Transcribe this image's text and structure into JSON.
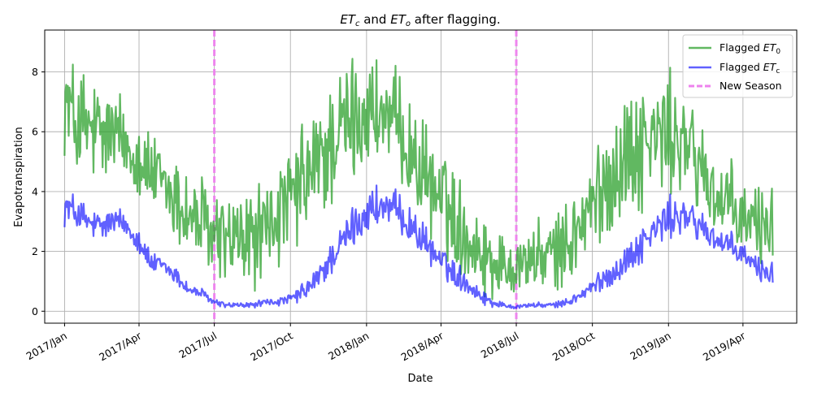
{
  "chart_data": {
    "type": "line",
    "title_parts": [
      "ET",
      "c",
      " and ",
      "ET",
      "o",
      " after flagging."
    ],
    "xlabel": "Date",
    "ylabel": "Evapotranspiration",
    "x_ticks": [
      {
        "date": "2017-01-01",
        "label": "2017/Jan"
      },
      {
        "date": "2017-04-01",
        "label": "2017/Apr"
      },
      {
        "date": "2017-07-01",
        "label": "2017/Jul"
      },
      {
        "date": "2017-10-01",
        "label": "2017/Oct"
      },
      {
        "date": "2018-01-01",
        "label": "2018/Jan"
      },
      {
        "date": "2018-04-01",
        "label": "2018/Apr"
      },
      {
        "date": "2018-07-01",
        "label": "2018/Jul"
      },
      {
        "date": "2018-10-01",
        "label": "2018/Oct"
      },
      {
        "date": "2019-01-01",
        "label": "2019/Jan"
      },
      {
        "date": "2019-04-01",
        "label": "2019/Apr"
      }
    ],
    "y_ticks": [
      0,
      2,
      4,
      6,
      8
    ],
    "xlim": [
      "2016-12-08",
      "2019-06-05"
    ],
    "ylim": [
      -0.4,
      9.4
    ],
    "grid": true,
    "legend_position": "top-right",
    "series": [
      {
        "name": "Flagged ET0",
        "legend_parts": [
          "Flagged ",
          "ET",
          "0"
        ],
        "color": "#2ca02c",
        "opacity": 0.75,
        "x": [
          "2017-01-01",
          "2017-01-15",
          "2017-02-01",
          "2017-02-15",
          "2017-03-01",
          "2017-03-15",
          "2017-04-01",
          "2017-04-15",
          "2017-05-01",
          "2017-05-15",
          "2017-06-01",
          "2017-06-15",
          "2017-07-01",
          "2017-07-15",
          "2017-08-01",
          "2017-08-15",
          "2017-09-01",
          "2017-09-15",
          "2017-10-01",
          "2017-10-15",
          "2017-11-01",
          "2017-11-15",
          "2017-12-01",
          "2017-12-15",
          "2018-01-01",
          "2018-01-15",
          "2018-02-01",
          "2018-02-15",
          "2018-03-01",
          "2018-03-15",
          "2018-04-01",
          "2018-04-15",
          "2018-05-01",
          "2018-05-15",
          "2018-06-01",
          "2018-06-15",
          "2018-07-01",
          "2018-07-15",
          "2018-08-01",
          "2018-08-15",
          "2018-09-01",
          "2018-09-15",
          "2018-10-01",
          "2018-10-15",
          "2018-11-01",
          "2018-11-15",
          "2018-12-01",
          "2018-12-15",
          "2019-01-01",
          "2019-01-15",
          "2019-02-01",
          "2019-02-15",
          "2019-03-01",
          "2019-03-15",
          "2019-04-01",
          "2019-04-15",
          "2019-05-01"
        ],
        "values": [
          7.1,
          6.3,
          6.0,
          5.8,
          5.9,
          5.6,
          5.2,
          4.6,
          4.2,
          3.7,
          3.2,
          2.9,
          2.5,
          2.4,
          2.3,
          2.4,
          2.7,
          3.1,
          3.6,
          4.2,
          4.8,
          5.4,
          6.0,
          6.4,
          6.7,
          6.6,
          6.3,
          5.8,
          5.0,
          4.4,
          3.8,
          3.2,
          2.6,
          2.1,
          1.7,
          1.5,
          1.6,
          1.7,
          1.8,
          1.9,
          2.2,
          2.8,
          3.5,
          4.2,
          4.9,
          5.3,
          5.6,
          5.8,
          5.9,
          5.7,
          5.2,
          4.5,
          3.8,
          3.4,
          3.0,
          2.9,
          3.0
        ],
        "amplitude": [
          1.1,
          1.3,
          1.3,
          1.2,
          1.1,
          1.0,
          0.9,
          0.9,
          0.9,
          1.0,
          1.1,
          1.1,
          1.0,
          1.0,
          1.1,
          1.1,
          1.1,
          1.1,
          1.2,
          1.3,
          1.4,
          1.4,
          1.4,
          1.4,
          1.3,
          1.2,
          1.2,
          1.1,
          1.1,
          1.1,
          1.1,
          1.1,
          1.0,
          0.9,
          0.8,
          0.7,
          0.7,
          0.7,
          0.8,
          0.8,
          0.9,
          1.0,
          1.1,
          1.2,
          1.4,
          1.4,
          1.4,
          1.4,
          1.3,
          1.2,
          1.2,
          1.1,
          1.1,
          1.0,
          1.0,
          1.0,
          1.0
        ]
      },
      {
        "name": "Flagged ETc",
        "legend_parts": [
          "Flagged ",
          "ET",
          "c"
        ],
        "color": "#0000ff",
        "opacity": 0.62,
        "x": [
          "2017-01-01",
          "2017-01-15",
          "2017-02-01",
          "2017-02-15",
          "2017-03-01",
          "2017-03-15",
          "2017-04-01",
          "2017-04-15",
          "2017-05-01",
          "2017-05-15",
          "2017-06-01",
          "2017-06-15",
          "2017-07-01",
          "2017-07-15",
          "2017-08-01",
          "2017-08-15",
          "2017-09-01",
          "2017-09-15",
          "2017-10-01",
          "2017-10-15",
          "2017-11-01",
          "2017-11-15",
          "2017-12-01",
          "2017-12-15",
          "2018-01-01",
          "2018-01-15",
          "2018-02-01",
          "2018-02-15",
          "2018-03-01",
          "2018-03-15",
          "2018-04-01",
          "2018-04-15",
          "2018-05-01",
          "2018-05-15",
          "2018-06-01",
          "2018-06-15",
          "2018-07-01",
          "2018-07-15",
          "2018-08-01",
          "2018-08-15",
          "2018-09-01",
          "2018-09-15",
          "2018-10-01",
          "2018-10-15",
          "2018-11-01",
          "2018-11-15",
          "2018-12-01",
          "2018-12-15",
          "2019-01-01",
          "2019-01-15",
          "2019-02-01",
          "2019-02-15",
          "2019-03-01",
          "2019-03-15",
          "2019-04-01",
          "2019-04-15",
          "2019-05-01"
        ],
        "values": [
          3.5,
          3.3,
          2.9,
          2.8,
          3.0,
          2.9,
          2.4,
          1.6,
          1.5,
          1.2,
          0.7,
          0.6,
          0.3,
          0.2,
          0.2,
          0.2,
          0.3,
          0.3,
          0.4,
          0.6,
          1.0,
          1.6,
          2.2,
          2.8,
          3.3,
          3.5,
          3.4,
          3.1,
          2.7,
          2.2,
          1.7,
          1.3,
          1.0,
          0.6,
          0.3,
          0.2,
          0.15,
          0.2,
          0.2,
          0.2,
          0.3,
          0.5,
          0.8,
          1.1,
          1.4,
          1.8,
          2.3,
          2.7,
          3.1,
          3.2,
          3.0,
          2.7,
          2.4,
          2.1,
          1.9,
          1.5,
          1.3
        ],
        "amplitude": [
          0.4,
          0.4,
          0.35,
          0.35,
          0.35,
          0.3,
          0.3,
          0.25,
          0.2,
          0.2,
          0.15,
          0.12,
          0.08,
          0.06,
          0.06,
          0.06,
          0.08,
          0.08,
          0.12,
          0.2,
          0.3,
          0.35,
          0.4,
          0.45,
          0.5,
          0.5,
          0.45,
          0.4,
          0.4,
          0.35,
          0.3,
          0.3,
          0.25,
          0.2,
          0.1,
          0.06,
          0.05,
          0.05,
          0.06,
          0.06,
          0.08,
          0.12,
          0.2,
          0.25,
          0.3,
          0.35,
          0.4,
          0.45,
          0.45,
          0.45,
          0.4,
          0.4,
          0.35,
          0.35,
          0.3,
          0.3,
          0.3
        ]
      }
    ],
    "vertical_lines": {
      "name": "New Season",
      "color": "#ee82ee",
      "dates": [
        "2017-07-01",
        "2018-07-01"
      ]
    },
    "x_end": "2019-05-07"
  }
}
